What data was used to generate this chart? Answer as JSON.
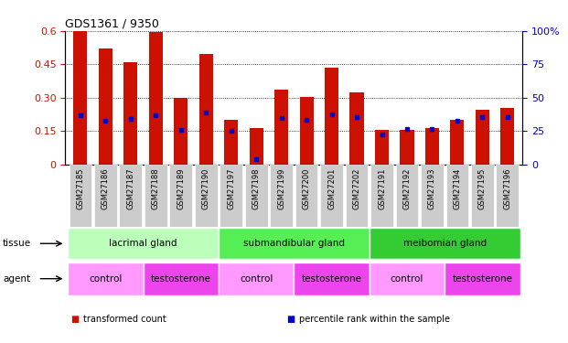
{
  "title": "GDS1361 / 9350",
  "samples": [
    "GSM27185",
    "GSM27186",
    "GSM27187",
    "GSM27188",
    "GSM27189",
    "GSM27190",
    "GSM27197",
    "GSM27198",
    "GSM27199",
    "GSM27200",
    "GSM27201",
    "GSM27202",
    "GSM27191",
    "GSM27192",
    "GSM27193",
    "GSM27194",
    "GSM27195",
    "GSM27196"
  ],
  "transformed_count": [
    0.6,
    0.52,
    0.46,
    0.595,
    0.3,
    0.495,
    0.2,
    0.165,
    0.335,
    0.305,
    0.435,
    0.325,
    0.155,
    0.155,
    0.165,
    0.2,
    0.245,
    0.255
  ],
  "percentile_rank": [
    0.22,
    0.195,
    0.205,
    0.22,
    0.155,
    0.235,
    0.15,
    0.025,
    0.21,
    0.2,
    0.225,
    0.215,
    0.135,
    0.16,
    0.16,
    0.195,
    0.215,
    0.215
  ],
  "bar_color": "#cc1100",
  "dot_color": "#0000cc",
  "ylim_left": [
    0,
    0.6
  ],
  "ylim_right": [
    0,
    100
  ],
  "yticks_left": [
    0,
    0.15,
    0.3,
    0.45,
    0.6
  ],
  "ytick_labels_left": [
    "0",
    "0.15",
    "0.30",
    "0.45",
    "0.6"
  ],
  "yticks_right": [
    0,
    25,
    50,
    75,
    100
  ],
  "ytick_labels_right": [
    "0",
    "25",
    "50",
    "75",
    "100%"
  ],
  "tissue_groups": [
    {
      "label": "lacrimal gland",
      "start": 0,
      "end": 6,
      "color": "#bbffbb"
    },
    {
      "label": "submandibular gland",
      "start": 6,
      "end": 12,
      "color": "#55ee55"
    },
    {
      "label": "meibomian gland",
      "start": 12,
      "end": 18,
      "color": "#33cc33"
    }
  ],
  "agent_groups": [
    {
      "label": "control",
      "start": 0,
      "end": 3,
      "color": "#ff99ff"
    },
    {
      "label": "testosterone",
      "start": 3,
      "end": 6,
      "color": "#ee44ee"
    },
    {
      "label": "control",
      "start": 6,
      "end": 9,
      "color": "#ff99ff"
    },
    {
      "label": "testosterone",
      "start": 9,
      "end": 12,
      "color": "#ee44ee"
    },
    {
      "label": "control",
      "start": 12,
      "end": 15,
      "color": "#ff99ff"
    },
    {
      "label": "testosterone",
      "start": 15,
      "end": 18,
      "color": "#ee44ee"
    }
  ],
  "legend_items": [
    {
      "label": "transformed count",
      "color": "#cc1100"
    },
    {
      "label": "percentile rank within the sample",
      "color": "#0000cc"
    }
  ],
  "bg_color": "#ffffff",
  "axis_color_left": "#cc1100",
  "axis_color_right": "#0000cc",
  "xtick_bg": "#cccccc",
  "left_label_color": "#000000"
}
